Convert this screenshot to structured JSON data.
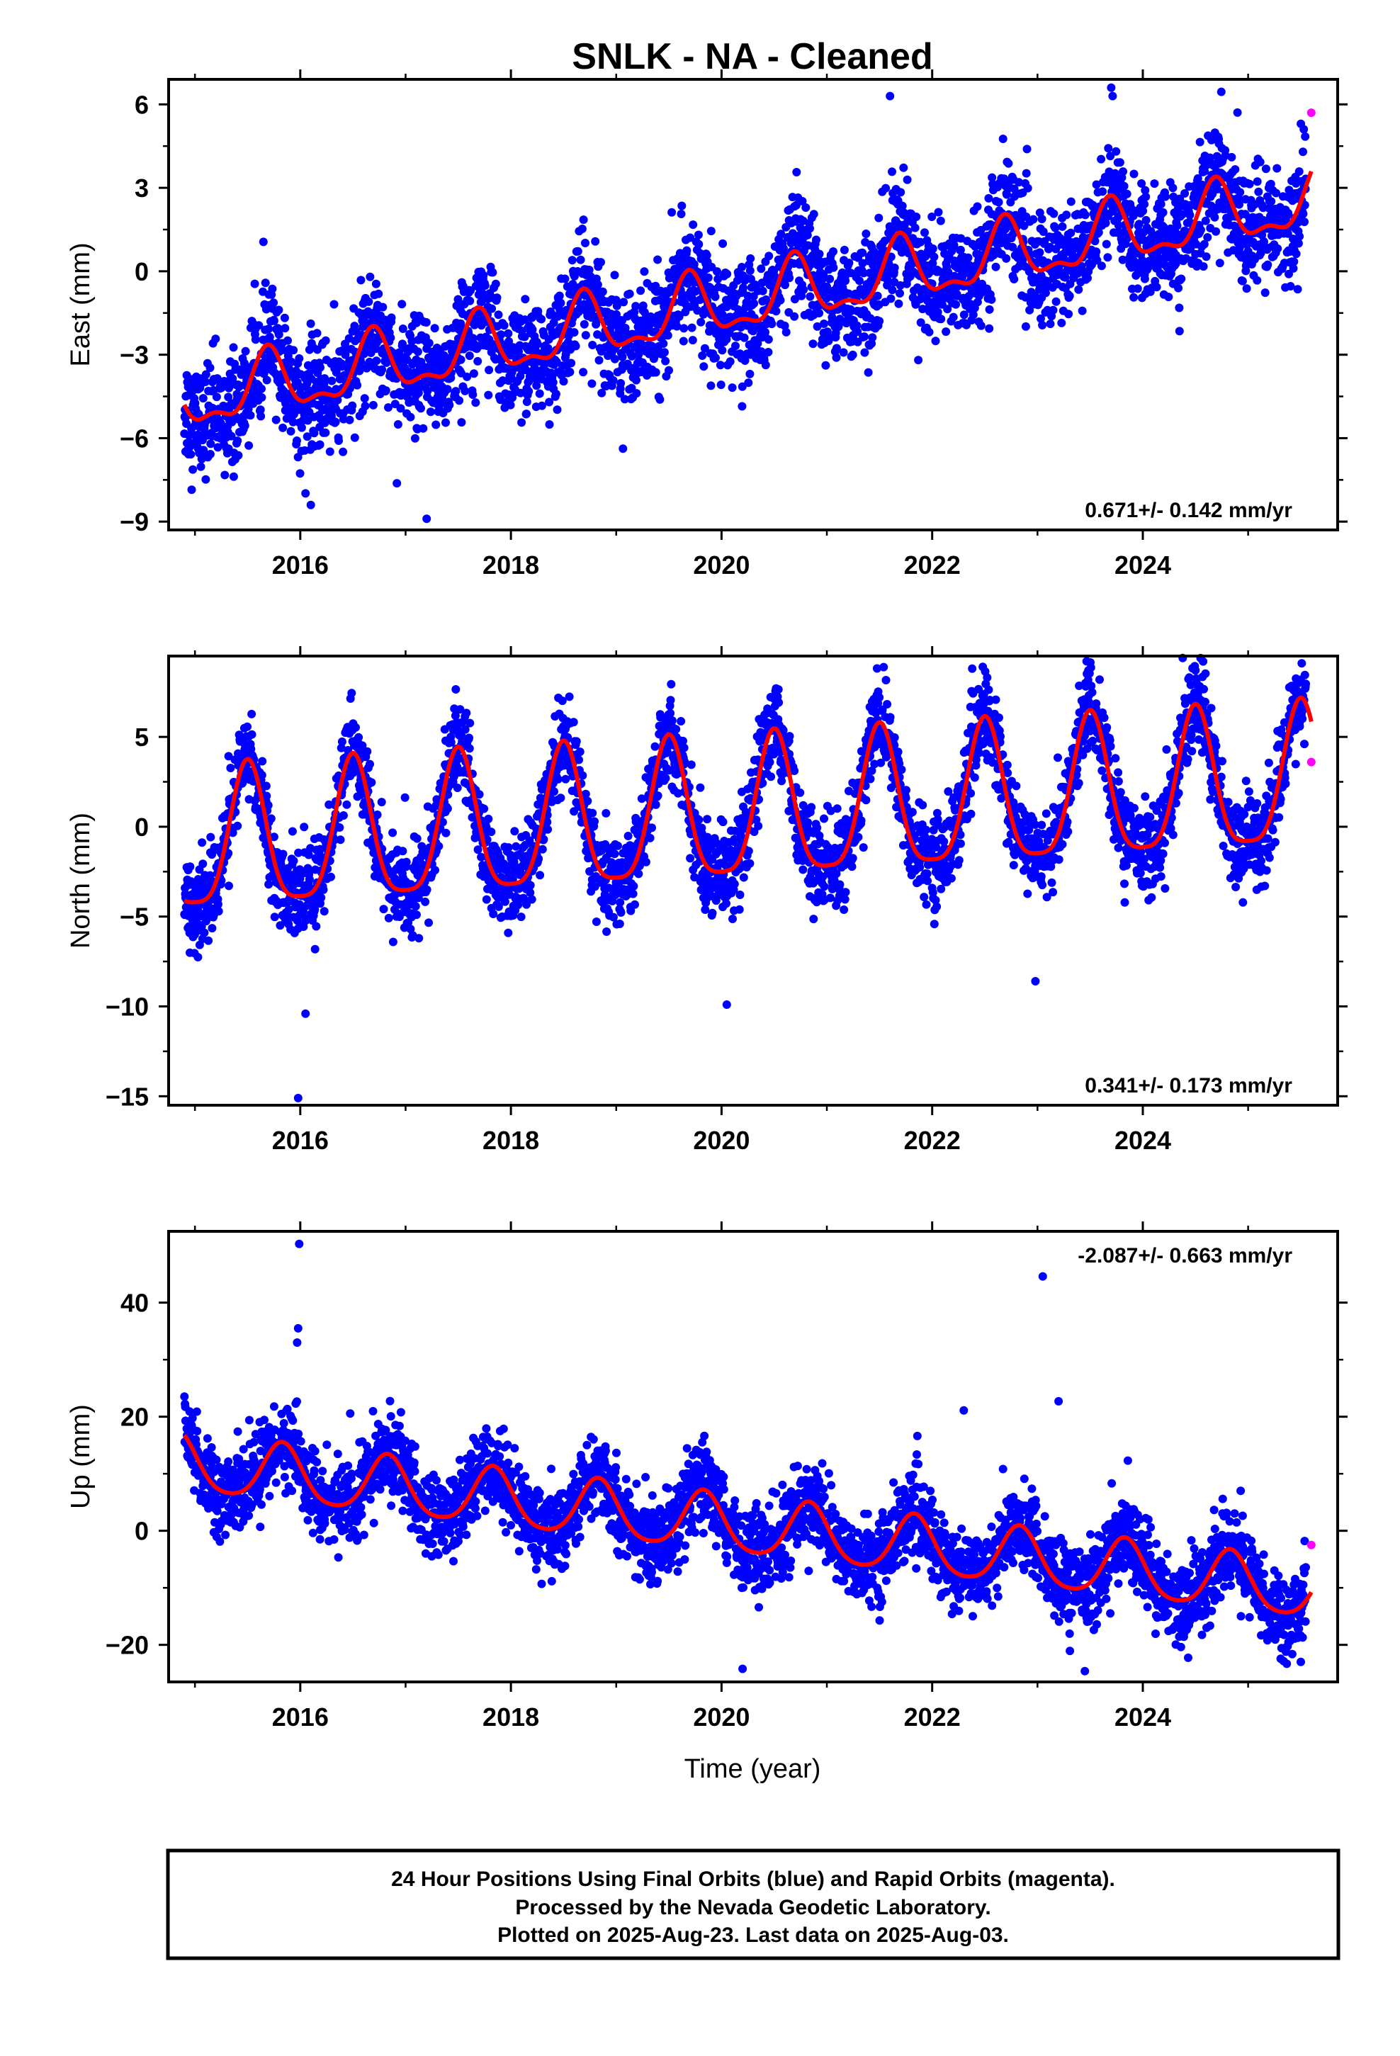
{
  "figure": {
    "title": "SNLK  - NA - Cleaned",
    "xlabel": "Time (year)",
    "caption": [
      "24 Hour Positions Using Final Orbits (blue) and Rapid Orbits (magenta).",
      "Processed by the Nevada Geodetic Laboratory.",
      "Plotted on 2025-Aug-23. Last data on 2025-Aug-03."
    ]
  },
  "colors": {
    "final": "#0000ff",
    "rapid": "#ff00ff",
    "model": "#ff0000",
    "frame": "#000000"
  },
  "chart_data": [
    {
      "type": "scatter",
      "component": "east",
      "ylabel": "East (mm)",
      "xlim": [
        2014.75,
        2025.85
      ],
      "ylim": [
        -9.3,
        6.9
      ],
      "x_ticks": [
        2016,
        2018,
        2020,
        2022,
        2024
      ],
      "y_ticks": [
        6,
        3,
        0,
        -3,
        -6,
        -9
      ],
      "rate_label": "0.671+/- 0.142 mm/yr",
      "rate_label_position": "bottom-right",
      "model": {
        "offset": -4.6,
        "rate": 0.671,
        "t0": 2015.0,
        "annual_amplitude": 1.05,
        "annual_phase_peak": 2015.69,
        "semiannual_amplitude": 0.45
      },
      "scatter_sigma": 1.0,
      "final_range": [
        2014.9,
        2025.55
      ],
      "outliers": [
        [
          2017.2,
          -8.9
        ],
        [
          2016.1,
          -8.4
        ],
        [
          2021.6,
          6.3
        ],
        [
          2023.7,
          6.6
        ]
      ],
      "rapid_points": [
        [
          2025.6,
          5.7
        ]
      ],
      "model_end": 2025.6
    },
    {
      "type": "scatter",
      "component": "north",
      "ylabel": "North (mm)",
      "xlim": [
        2014.75,
        2025.85
      ],
      "ylim": [
        -15.5,
        9.5
      ],
      "x_ticks": [
        2016,
        2018,
        2020,
        2022,
        2024
      ],
      "y_ticks": [
        5,
        0,
        -5,
        -10,
        -15
      ],
      "rate_label": "0.341+/- 0.173 mm/yr",
      "rate_label_position": "bottom-right",
      "model": {
        "offset": -1.2,
        "rate": 0.341,
        "t0": 2015.0,
        "annual_amplitude": 3.9,
        "annual_phase_peak": 2015.5,
        "semiannual_amplitude": 0.9
      },
      "scatter_sigma": 1.2,
      "final_range": [
        2014.9,
        2025.55
      ],
      "outliers": [
        [
          2015.98,
          -15.1
        ],
        [
          2016.05,
          -10.4
        ],
        [
          2020.05,
          -9.9
        ],
        [
          2022.48,
          8.9
        ],
        [
          2022.98,
          -8.6
        ],
        [
          2024.5,
          8.7
        ]
      ],
      "rapid_points": [
        [
          2025.6,
          3.6
        ]
      ],
      "model_end": 2025.6
    },
    {
      "type": "scatter",
      "component": "up",
      "ylabel": "Up (mm)",
      "xlim": [
        2014.75,
        2025.85
      ],
      "ylim": [
        -26.5,
        52.5
      ],
      "x_ticks": [
        2016,
        2018,
        2020,
        2022,
        2024
      ],
      "y_ticks": [
        40,
        20,
        0,
        -20
      ],
      "rate_label": "-2.087+/- 0.663 mm/yr",
      "rate_label_position": "top-right",
      "model": {
        "offset": 11.5,
        "rate": -2.087,
        "t0": 2015.0,
        "annual_amplitude": 5.0,
        "annual_phase_peak": 2015.83,
        "semiannual_amplitude": 0.8
      },
      "scatter_sigma": 3.6,
      "final_range": [
        2014.9,
        2025.55
      ],
      "outliers": [
        [
          2015.99,
          50.3
        ],
        [
          2015.98,
          35.5
        ],
        [
          2015.97,
          33.0
        ],
        [
          2023.05,
          44.6
        ],
        [
          2023.2,
          22.7
        ],
        [
          2022.3,
          21.1
        ],
        [
          2020.2,
          -24.2
        ],
        [
          2023.45,
          -24.6
        ],
        [
          2025.5,
          -23.0
        ]
      ],
      "rapid_points": [
        [
          2025.6,
          -2.5
        ]
      ],
      "model_end": 2025.6
    }
  ]
}
